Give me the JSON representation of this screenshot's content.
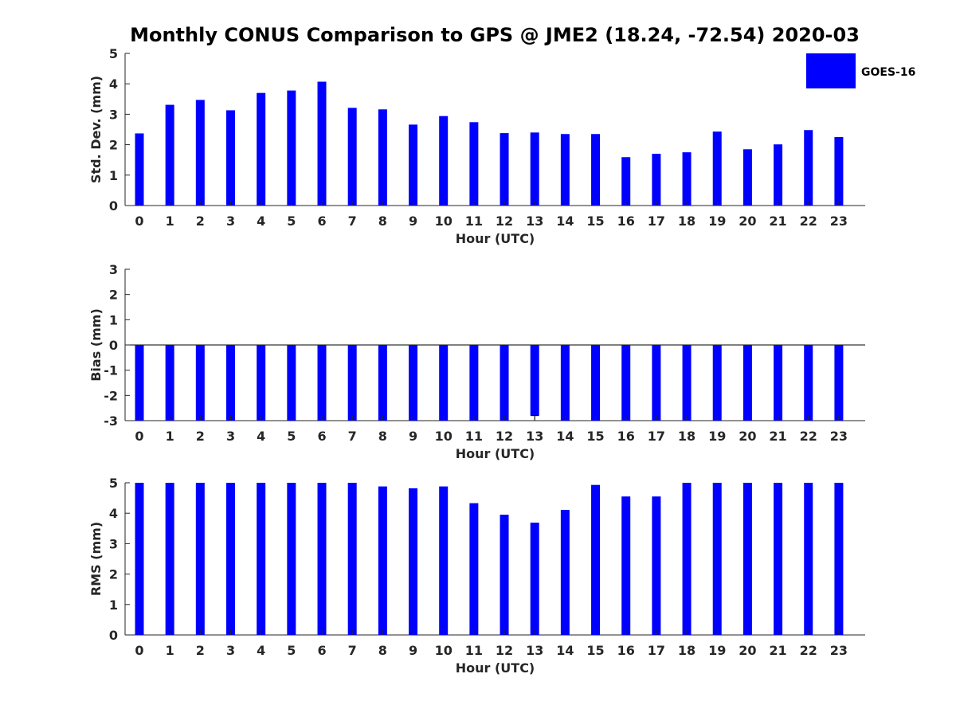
{
  "title": "Monthly CONUS Comparison to GPS @ JME2 (18.24, -72.54) 2020-03",
  "legend": {
    "label": "GOES-16",
    "color": "#0000ff"
  },
  "chart_data": [
    {
      "type": "bar",
      "categories": [
        "0",
        "1",
        "2",
        "3",
        "4",
        "5",
        "6",
        "7",
        "8",
        "9",
        "10",
        "11",
        "12",
        "13",
        "14",
        "15",
        "16",
        "17",
        "18",
        "19",
        "20",
        "21",
        "22",
        "23"
      ],
      "series": [
        {
          "name": "GOES-16",
          "values": [
            2.37,
            3.31,
            3.47,
            3.13,
            3.7,
            3.78,
            4.07,
            3.21,
            3.16,
            2.66,
            2.94,
            2.74,
            2.38,
            2.4,
            2.35,
            2.35,
            1.59,
            1.7,
            1.75,
            2.43,
            1.85,
            2.01,
            2.48,
            2.25
          ]
        }
      ],
      "xlabel": "Hour (UTC)",
      "ylabel": "Std. Dev. (mm)",
      "ylim": [
        0,
        5
      ],
      "yticks": [
        0,
        1,
        2,
        3,
        4,
        5
      ],
      "error_bars": false
    },
    {
      "type": "bar",
      "categories": [
        "0",
        "1",
        "2",
        "3",
        "4",
        "5",
        "6",
        "7",
        "8",
        "9",
        "10",
        "11",
        "12",
        "13",
        "14",
        "15",
        "16",
        "17",
        "18",
        "19",
        "20",
        "21",
        "22",
        "23"
      ],
      "series": [
        {
          "name": "GOES-16",
          "values": [
            -3,
            -3,
            -3,
            -3,
            -3,
            -3,
            -3,
            -3,
            -3,
            -3,
            -3,
            -3,
            -3,
            -2.8,
            -3,
            -3,
            -3,
            -3,
            -3,
            -3,
            -3,
            -3,
            -3,
            -3
          ]
        }
      ],
      "xlabel": "Hour (UTC)",
      "ylabel": "Bias (mm)",
      "ylim": [
        -3,
        3
      ],
      "yticks": [
        -3,
        -2,
        -1,
        0,
        1,
        2,
        3
      ],
      "error_bars": true
    },
    {
      "type": "bar",
      "categories": [
        "0",
        "1",
        "2",
        "3",
        "4",
        "5",
        "6",
        "7",
        "8",
        "9",
        "10",
        "11",
        "12",
        "13",
        "14",
        "15",
        "16",
        "17",
        "18",
        "19",
        "20",
        "21",
        "22",
        "23"
      ],
      "series": [
        {
          "name": "GOES-16",
          "values": [
            5,
            5,
            5,
            5,
            5,
            5,
            5,
            5,
            4.88,
            4.82,
            4.88,
            4.33,
            3.95,
            3.69,
            4.11,
            4.93,
            4.55,
            4.55,
            5,
            5,
            5,
            5,
            5,
            5
          ]
        }
      ],
      "xlabel": "Hour (UTC)",
      "ylabel": "RMS (mm)",
      "ylim": [
        0,
        5
      ],
      "yticks": [
        0,
        1,
        2,
        3,
        4,
        5
      ],
      "error_bars": false
    }
  ]
}
